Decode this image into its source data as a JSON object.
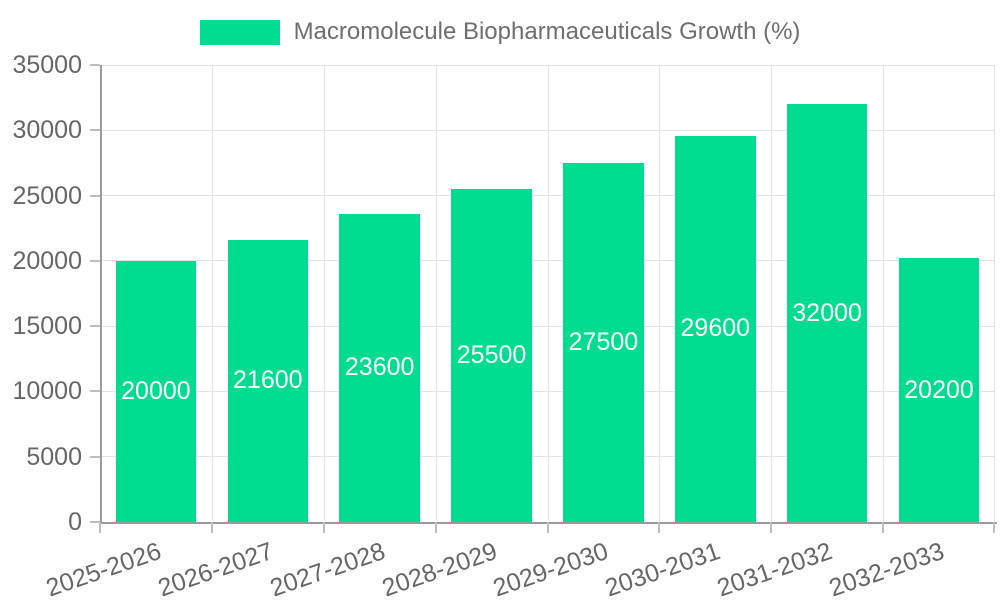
{
  "legend": {
    "items": [
      {
        "label": "Macromolecule Biopharmaceuticals Growth (%)",
        "color": "#00DC8F"
      }
    ]
  },
  "colors": {
    "bar": "#00DC8F",
    "bar_label": "#FFFFFF",
    "axis_line": "#9A9A9A",
    "tick": "#BDBDBD",
    "grid": "#E3E3E3",
    "text": "#666666",
    "background": "#FFFFFF"
  },
  "chart_data": {
    "type": "bar",
    "title": "Macromolecule Biopharmaceuticals Growth (%)",
    "categories": [
      "2025-2026",
      "2026-2027",
      "2027-2028",
      "2028-2029",
      "2029-2030",
      "2030-2031",
      "2031-2032",
      "2032-2033"
    ],
    "series": [
      {
        "name": "Macromolecule Biopharmaceuticals Growth (%)",
        "values": [
          20000,
          21600,
          23600,
          25500,
          27500,
          29600,
          32000,
          20200
        ]
      }
    ],
    "xlabel": "",
    "ylabel": "",
    "ylim": [
      0,
      35000
    ],
    "yticks": [
      0,
      5000,
      10000,
      15000,
      20000,
      25000,
      30000,
      35000
    ],
    "grid": true,
    "legend_position": "top",
    "bar_value_labels": true,
    "x_tick_label_rotation_deg": -19
  }
}
